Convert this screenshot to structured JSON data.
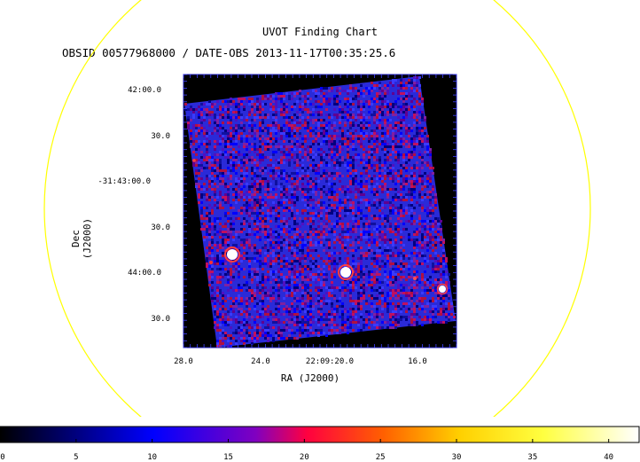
{
  "title": "UVOT Finding Chart",
  "subtitle": "OBSID 00577968000 / DATE-OBS 2013-11-17T00:35:25.6",
  "dec_axis": {
    "label": "Dec (J2000)",
    "ticks": [
      "42:00.0",
      "30.0",
      "-31:43:00.0",
      "30.0",
      "44:00.0",
      "30.0"
    ]
  },
  "ra_axis": {
    "label": "RA (J2000)",
    "ticks": [
      "28.0",
      "24.0",
      "22:09:20.0",
      "16.0"
    ]
  },
  "colorbar": {
    "ticks": [
      "0",
      "5",
      "10",
      "15",
      "20",
      "25",
      "30",
      "35",
      "40"
    ],
    "range": [
      0,
      42
    ]
  },
  "colors": {
    "circle": "#ffff00",
    "frame": "#2020c0",
    "image_bg": "#000000",
    "noise_base": "#2a2ad8"
  }
}
